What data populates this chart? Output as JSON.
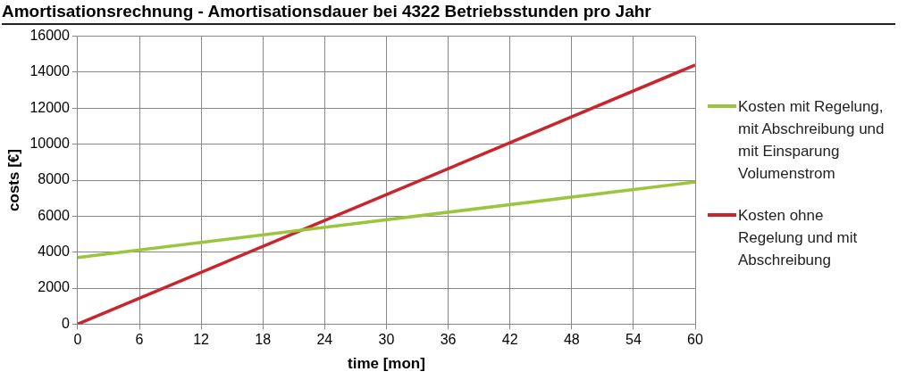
{
  "chart_data": {
    "type": "line",
    "title": "Amortisationsrechnung - Amortisationsdauer bei 4322 Betriebsstunden pro Jahr",
    "xlabel": "time [mon]",
    "ylabel": "costs [€]",
    "x": [
      0,
      60
    ],
    "series": [
      {
        "name": "Kosten mit Regelung, mit Abschreibung und mit Einsparung Volumenstrom",
        "color": "#9bc53d",
        "values": [
          3700,
          7900
        ]
      },
      {
        "name": "Kosten ohne Regelung und mit Abschreibung",
        "color": "#c8262c",
        "values": [
          0,
          14400
        ]
      }
    ],
    "xlim": [
      0,
      60
    ],
    "xticks": [
      0,
      6,
      12,
      18,
      24,
      30,
      36,
      42,
      48,
      54,
      60
    ],
    "ylim": [
      0,
      16000
    ],
    "yticks": [
      0,
      2000,
      4000,
      6000,
      8000,
      10000,
      12000,
      14000,
      16000
    ],
    "grid": true,
    "legend": "right",
    "marker": "none",
    "line_style": "solid"
  }
}
